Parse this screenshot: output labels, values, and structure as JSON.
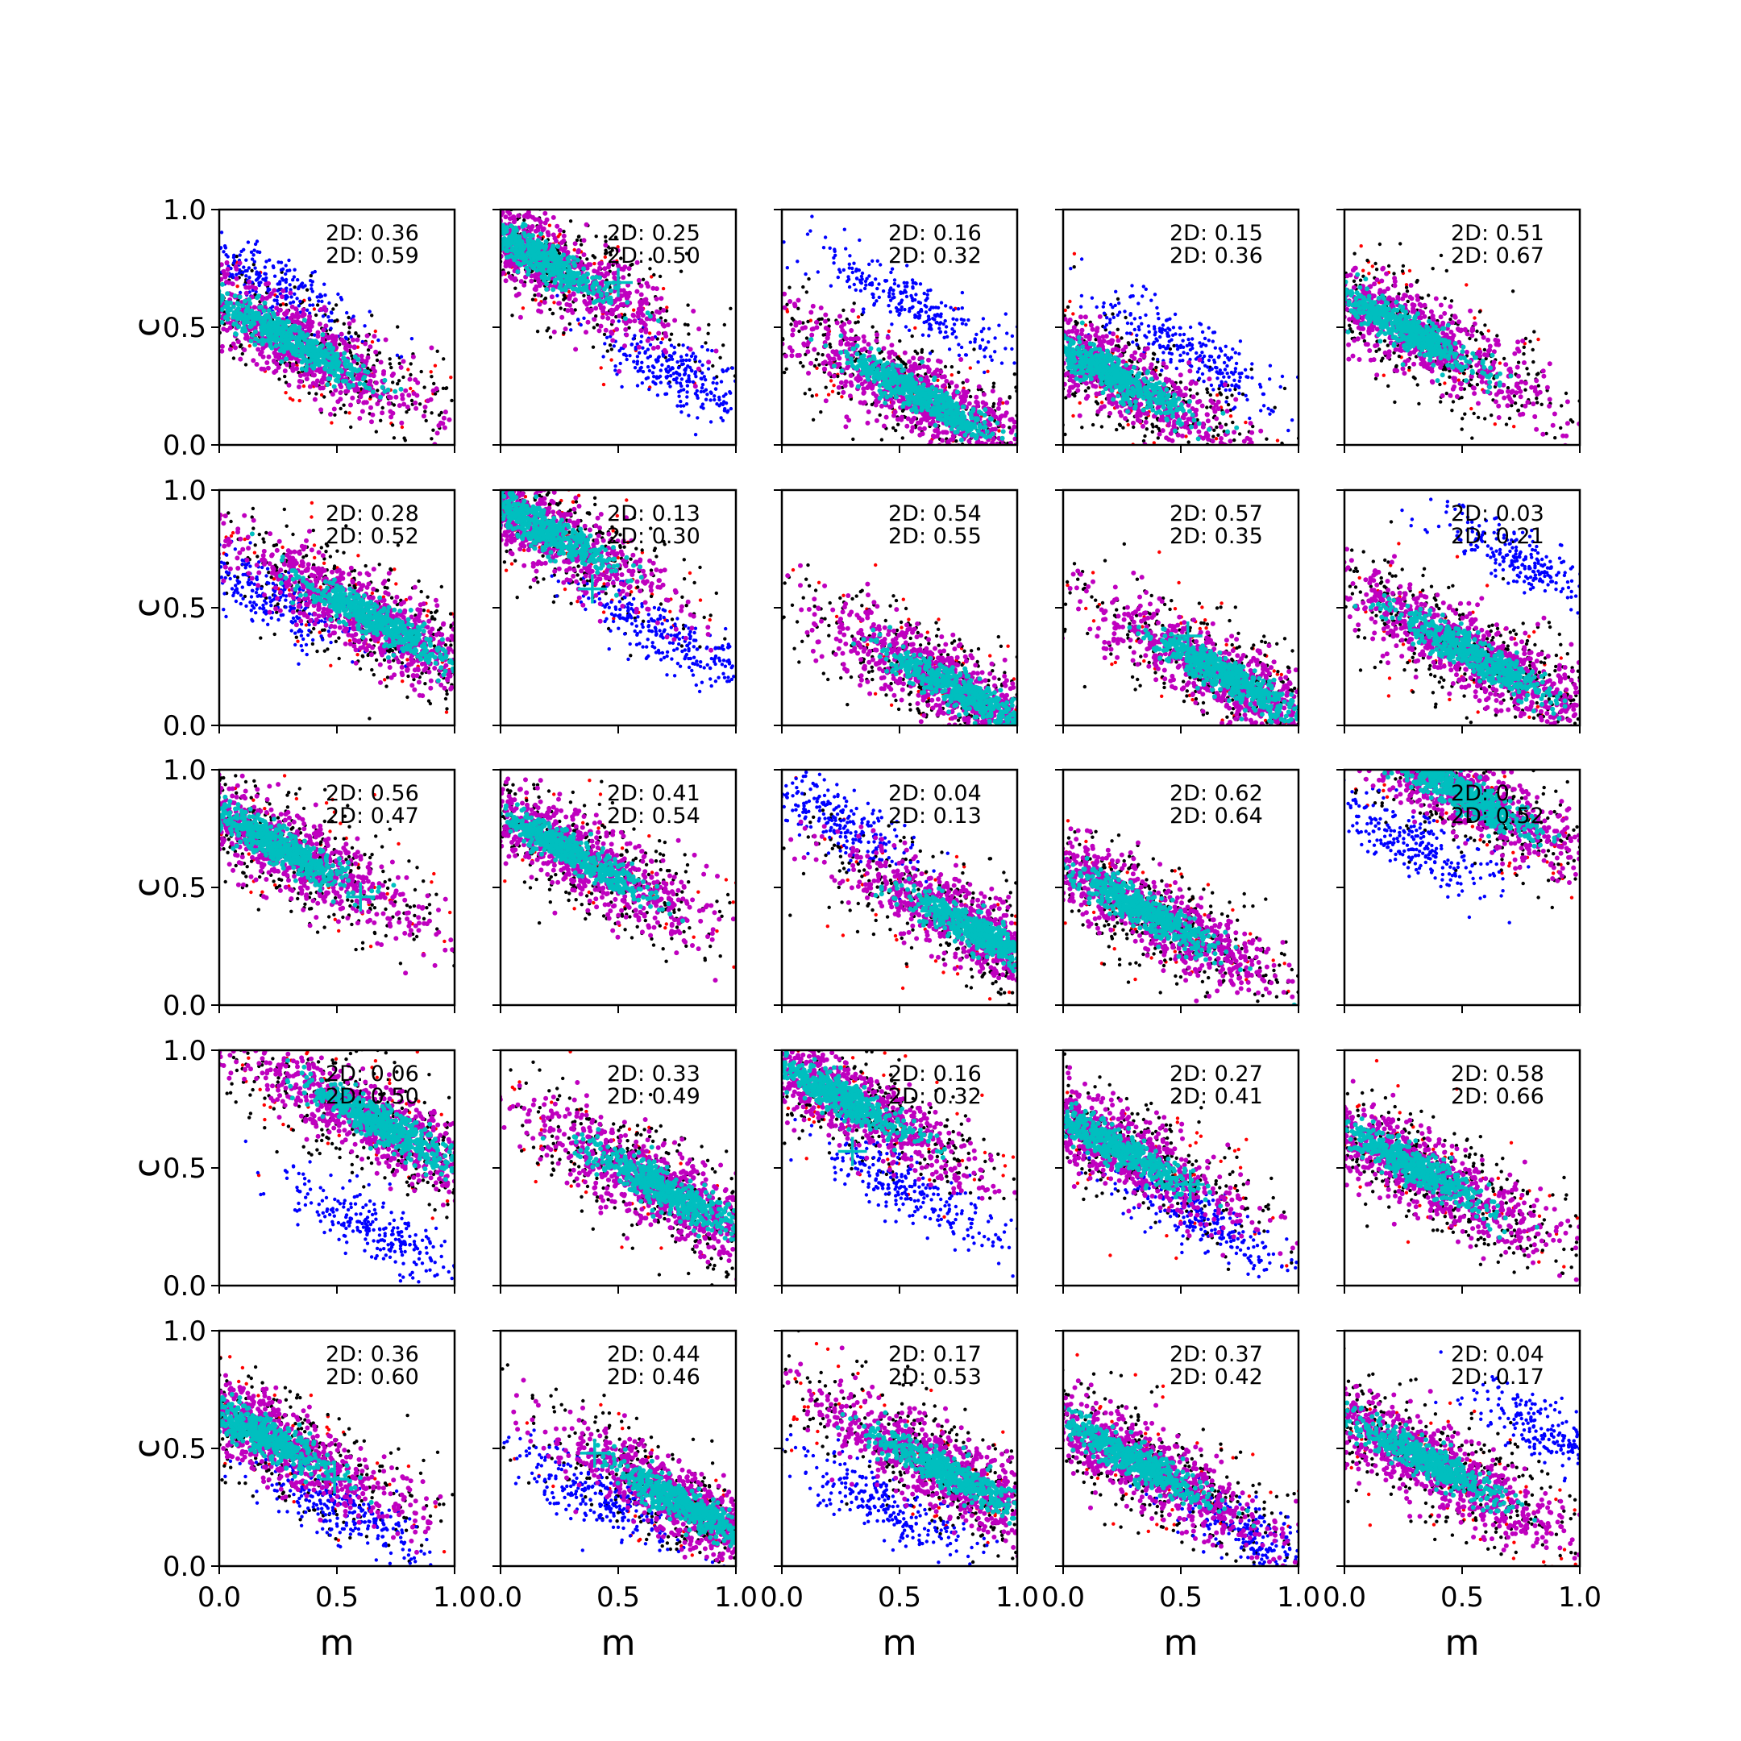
{
  "chart_data": {
    "type": "scatter",
    "layout": {
      "rows": 5,
      "cols": 5,
      "sharex": true,
      "sharey": true
    },
    "xlabel": "m",
    "ylabel": "c",
    "xlim": [
      0.0,
      1.0
    ],
    "ylim": [
      0.0,
      1.0
    ],
    "xticks": [
      "0.0",
      "0.5",
      "1.0"
    ],
    "yticks": [
      "0.0",
      "0.5",
      "1.0"
    ],
    "grid": false,
    "legend": "none",
    "colors": {
      "outer": "#ff0000",
      "black": "#000000",
      "blue": "#0000ff",
      "magenta": "#bf00bf",
      "core": "#00bfbf",
      "marker": "#00bfbf"
    },
    "panels": [
      {
        "annotations": [
          "2D: 0.36",
          "2D: 0.59"
        ],
        "cluster": {
          "cx": 0.3,
          "cy": 0.45
        },
        "blue": {
          "cx": 0.2,
          "cy": 0.7
        },
        "marker": null
      },
      {
        "annotations": [
          "2D: 0.25",
          "2D: 0.50"
        ],
        "cluster": {
          "cx": 0.15,
          "cy": 0.8
        },
        "blue": {
          "cx": 0.75,
          "cy": 0.3
        },
        "marker": {
          "m": 0.5,
          "c": 0.69
        }
      },
      {
        "annotations": [
          "2D: 0.16",
          "2D: 0.32"
        ],
        "cluster": {
          "cx": 0.6,
          "cy": 0.2
        },
        "blue": {
          "cx": 0.55,
          "cy": 0.6
        },
        "marker": null
      },
      {
        "annotations": [
          "2D: 0.15",
          "2D: 0.36"
        ],
        "cluster": {
          "cx": 0.2,
          "cy": 0.3
        },
        "blue": {
          "cx": 0.55,
          "cy": 0.4
        },
        "marker": null
      },
      {
        "annotations": [
          "2D: 0.51",
          "2D: 0.67"
        ],
        "cluster": {
          "cx": 0.25,
          "cy": 0.5
        },
        "blue": null,
        "marker": null
      },
      {
        "annotations": [
          "2D: 0.28",
          "2D: 0.52"
        ],
        "cluster": {
          "cx": 0.65,
          "cy": 0.45
        },
        "blue": {
          "cx": 0.2,
          "cy": 0.55
        },
        "marker": null
      },
      {
        "annotations": [
          "2D: 0.13",
          "2D: 0.30"
        ],
        "cluster": {
          "cx": 0.15,
          "cy": 0.85
        },
        "blue": {
          "cx": 0.7,
          "cy": 0.38
        },
        "marker": {
          "m": 0.39,
          "c": 0.58
        }
      },
      {
        "annotations": [
          "2D: 0.54",
          "2D: 0.55"
        ],
        "cluster": {
          "cx": 0.75,
          "cy": 0.15
        },
        "blue": null,
        "marker": null
      },
      {
        "annotations": [
          "2D: 0.57",
          "2D: 0.35"
        ],
        "cluster": {
          "cx": 0.7,
          "cy": 0.2
        },
        "blue": null,
        "marker": {
          "m": 0.53,
          "c": 0.38
        }
      },
      {
        "annotations": [
          "2D: 0.03",
          "2D: 0.21"
        ],
        "cluster": {
          "cx": 0.55,
          "cy": 0.3
        },
        "blue": {
          "cx": 0.75,
          "cy": 0.7
        },
        "marker": null
      },
      {
        "annotations": [
          "2D: 0.56",
          "2D: 0.47"
        ],
        "cluster": {
          "cx": 0.25,
          "cy": 0.68
        },
        "blue": null,
        "marker": {
          "m": 0.6,
          "c": 0.46
        }
      },
      {
        "annotations": [
          "2D: 0.41",
          "2D: 0.54"
        ],
        "cluster": {
          "cx": 0.3,
          "cy": 0.65
        },
        "blue": null,
        "marker": null
      },
      {
        "annotations": [
          "2D: 0.04",
          "2D: 0.13"
        ],
        "cluster": {
          "cx": 0.85,
          "cy": 0.3
        },
        "blue": {
          "cx": 0.2,
          "cy": 0.8
        },
        "marker": {
          "m": 0.65,
          "c": 0.4
        }
      },
      {
        "annotations": [
          "2D: 0.62",
          "2D: 0.64"
        ],
        "cluster": {
          "cx": 0.35,
          "cy": 0.4
        },
        "blue": null,
        "marker": null
      },
      {
        "annotations": [
          "2D: 0.",
          "2D: 0.52"
        ],
        "cluster": {
          "cx": 0.5,
          "cy": 0.9
        },
        "blue": {
          "cx": 0.25,
          "cy": 0.7
        },
        "marker": null
      },
      {
        "annotations": [
          "2D: 0.06",
          "2D: 0.50"
        ],
        "cluster": {
          "cx": 0.7,
          "cy": 0.68
        },
        "blue": {
          "cx": 0.65,
          "cy": 0.25
        },
        "marker": null
      },
      {
        "annotations": [
          "2D: 0.33",
          "2D: 0.49"
        ],
        "cluster": {
          "cx": 0.7,
          "cy": 0.4
        },
        "blue": null,
        "marker": null
      },
      {
        "annotations": [
          "2D: 0.16",
          "2D: 0.32"
        ],
        "cluster": {
          "cx": 0.25,
          "cy": 0.8
        },
        "blue": {
          "cx": 0.55,
          "cy": 0.4
        },
        "marker": {
          "m": 0.3,
          "c": 0.57
        }
      },
      {
        "annotations": [
          "2D: 0.27",
          "2D: 0.41"
        ],
        "cluster": {
          "cx": 0.2,
          "cy": 0.6
        },
        "blue": {
          "cx": 0.55,
          "cy": 0.3
        },
        "marker": {
          "m": 0.54,
          "c": 0.43
        }
      },
      {
        "annotations": [
          "2D: 0.58",
          "2D: 0.66"
        ],
        "cluster": {
          "cx": 0.3,
          "cy": 0.5
        },
        "blue": null,
        "marker": null
      },
      {
        "annotations": [
          "2D: 0.36",
          "2D: 0.60"
        ],
        "cluster": {
          "cx": 0.2,
          "cy": 0.55
        },
        "blue": {
          "cx": 0.5,
          "cy": 0.25
        },
        "marker": {
          "m": 0.49,
          "c": 0.37
        }
      },
      {
        "annotations": [
          "2D: 0.44",
          "2D: 0.46"
        ],
        "cluster": {
          "cx": 0.8,
          "cy": 0.25
        },
        "blue": {
          "cx": 0.4,
          "cy": 0.3
        },
        "marker": {
          "m": 0.4,
          "c": 0.48
        }
      },
      {
        "annotations": [
          "2D: 0.17",
          "2D: 0.53"
        ],
        "cluster": {
          "cx": 0.7,
          "cy": 0.4
        },
        "blue": {
          "cx": 0.45,
          "cy": 0.25
        },
        "marker": null
      },
      {
        "annotations": [
          "2D: 0.37",
          "2D: 0.42"
        ],
        "cluster": {
          "cx": 0.3,
          "cy": 0.45
        },
        "blue": {
          "cx": 0.85,
          "cy": 0.1
        },
        "marker": null
      },
      {
        "annotations": [
          "2D: 0.04",
          "2D: 0.17"
        ],
        "cluster": {
          "cx": 0.35,
          "cy": 0.45
        },
        "blue": {
          "cx": 0.9,
          "cy": 0.55
        },
        "marker": null
      }
    ]
  }
}
